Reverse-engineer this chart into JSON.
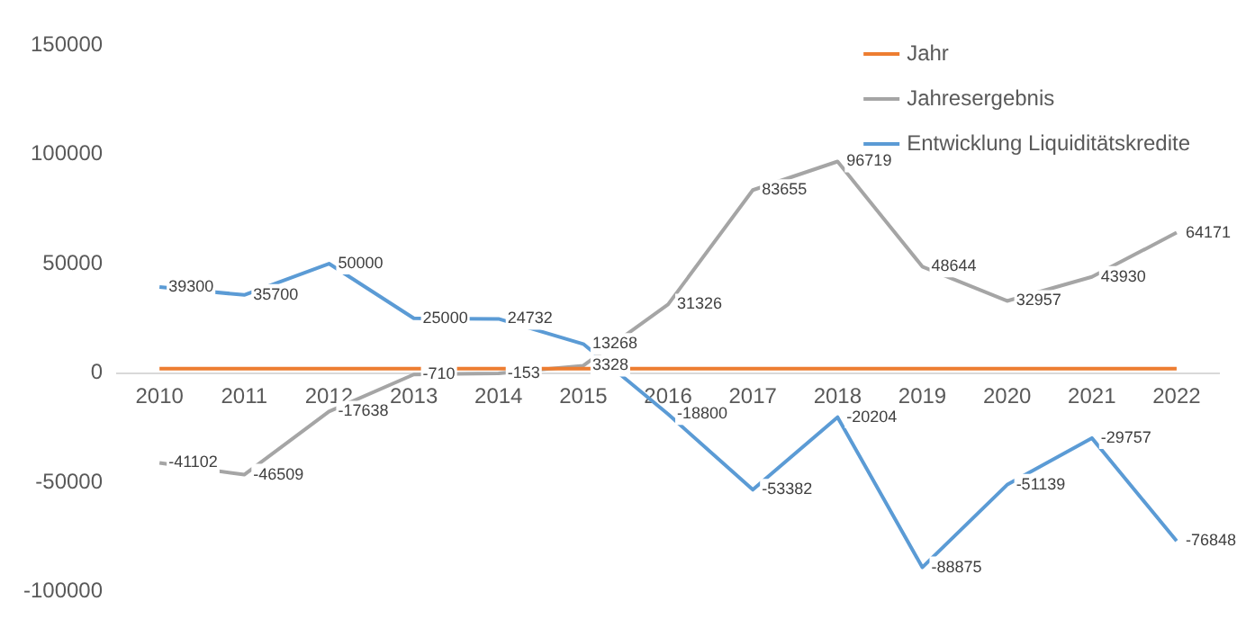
{
  "chart_data": {
    "type": "line",
    "categories": [
      "2010",
      "2011",
      "2012",
      "2013",
      "2014",
      "2015",
      "2016",
      "2017",
      "2018",
      "2019",
      "2020",
      "2021",
      "2022"
    ],
    "series": [
      {
        "name": "Jahr",
        "color": "#ed7d31",
        "values": [
          2010,
          2011,
          2012,
          2013,
          2014,
          2015,
          2016,
          2017,
          2018,
          2019,
          2020,
          2021,
          2022
        ]
      },
      {
        "name": "Jahresergebnis",
        "color": "#a5a5a5",
        "values": [
          -41102,
          -46509,
          -17638,
          -710,
          -153,
          3328,
          31326,
          83655,
          96719,
          48644,
          32957,
          43930,
          64171
        ],
        "value_labels": [
          "-41102",
          "-46509",
          "-17638",
          "-710",
          "-153",
          "3328",
          "31326",
          "83655",
          "96719",
          "48644",
          "32957",
          "43930",
          "64171"
        ]
      },
      {
        "name": "Entwicklung Liquiditätskredite",
        "color": "#5b9bd5",
        "values": [
          39300,
          35700,
          50000,
          25000,
          24732,
          13268,
          -18800,
          -53382,
          -20204,
          -88875,
          -51139,
          -29757,
          -76848
        ],
        "value_labels": [
          "39300",
          "35700",
          "50000",
          "25000",
          "24732",
          "13268",
          "-18800",
          "-53382",
          "-20204",
          "-88875",
          "-51139",
          "-29757",
          "-76848"
        ]
      }
    ],
    "ylim": [
      -100000,
      150000
    ],
    "yticks": [
      -100000,
      -50000,
      0,
      50000,
      100000,
      150000
    ],
    "grid": false,
    "legend": "top right",
    "marker": "none",
    "line_style": "solid"
  }
}
